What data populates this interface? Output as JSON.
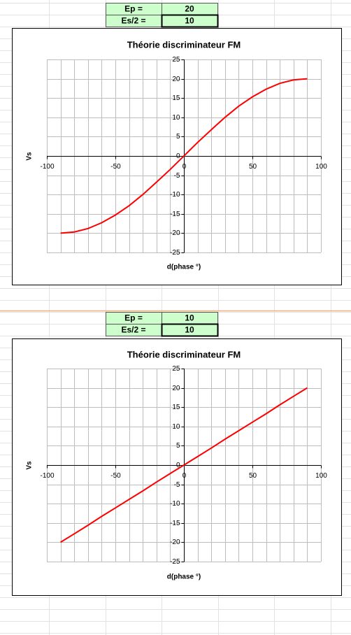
{
  "cells": [
    [
      {
        "label": "Ep =",
        "value": 20
      },
      {
        "label": "Es/2 =",
        "value": 10
      }
    ],
    [
      {
        "label": "Ep =",
        "value": 10
      },
      {
        "label": "Es/2 =",
        "value": 10
      }
    ]
  ],
  "chart_data": [
    {
      "type": "line",
      "title": "Théorie discriminateur FM",
      "x_label": "d(phase °)",
      "y_label": "Vs",
      "x": [
        -90,
        -80,
        -70,
        -60,
        -50,
        -40,
        -30,
        -20,
        -10,
        0,
        10,
        20,
        30,
        40,
        50,
        60,
        70,
        80,
        90
      ],
      "series": [
        {
          "color": "#ff0000",
          "values": [
            -20,
            -19.7,
            -18.8,
            -17.3,
            -15.3,
            -12.9,
            -10,
            -6.8,
            -3.5,
            0,
            3.5,
            6.8,
            10,
            12.9,
            15.3,
            17.3,
            18.8,
            19.7,
            20
          ]
        }
      ],
      "xlim": [
        -100,
        100
      ],
      "xticks": [
        -100,
        -50,
        0,
        50,
        100
      ],
      "xgrid": [
        -100,
        -90,
        -80,
        -70,
        -60,
        -50,
        -40,
        -30,
        -20,
        -10,
        0,
        10,
        20,
        30,
        40,
        50,
        60,
        70,
        80,
        90,
        100
      ],
      "ylim": [
        -25,
        25
      ],
      "yticks": [
        -25,
        -20,
        -15,
        -10,
        -5,
        0,
        5,
        10,
        15,
        20,
        25
      ],
      "grid": true
    },
    {
      "type": "line",
      "title": "Théorie discriminateur FM",
      "x_label": "d(phase °)",
      "y_label": "Vs",
      "x": [
        -90,
        -80,
        -70,
        -60,
        -50,
        -40,
        -30,
        -20,
        -10,
        0,
        10,
        20,
        30,
        40,
        50,
        60,
        70,
        80,
        90
      ],
      "series": [
        {
          "color": "#ff0000",
          "values": [
            -20,
            -17.8,
            -15.6,
            -13.3,
            -11.1,
            -8.9,
            -6.7,
            -4.4,
            -2.2,
            0,
            2.2,
            4.4,
            6.7,
            8.9,
            11.1,
            13.3,
            15.6,
            17.8,
            20
          ]
        }
      ],
      "xlim": [
        -100,
        100
      ],
      "xticks": [
        -100,
        -50,
        0,
        50,
        100
      ],
      "xgrid": [
        -100,
        -90,
        -80,
        -70,
        -60,
        -50,
        -40,
        -30,
        -20,
        -10,
        0,
        10,
        20,
        30,
        40,
        50,
        60,
        70,
        80,
        90,
        100
      ],
      "ylim": [
        -25,
        25
      ],
      "yticks": [
        -25,
        -20,
        -15,
        -10,
        -5,
        0,
        5,
        10,
        15,
        20,
        25
      ],
      "grid": true
    }
  ]
}
